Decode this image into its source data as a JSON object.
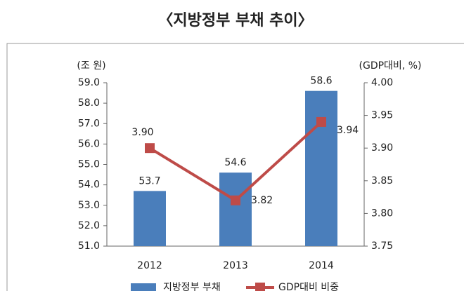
{
  "chart_data": {
    "type": "bar",
    "title": "〈지방정부 부채 추이〉",
    "y_label": "(조 원)",
    "y2_label": "(GDP대비, %)",
    "categories": [
      "2012",
      "2013",
      "2014"
    ],
    "series": [
      {
        "name": "지방정부 부채",
        "type": "bar",
        "color": "#4a7ebb",
        "values": [
          53.7,
          54.6,
          58.6
        ]
      },
      {
        "name": "GDP대비 비중",
        "type": "line",
        "axis": "y2",
        "color": "#be4b48",
        "values": [
          3.9,
          3.82,
          3.94
        ],
        "value_labels": [
          "3.90",
          "3.82",
          "3.94"
        ]
      }
    ],
    "ylim": [
      51,
      59
    ],
    "yticks": [
      {
        "value": 51,
        "label": "51.0"
      },
      {
        "value": 52,
        "label": "52.0"
      },
      {
        "value": 53,
        "label": "53.0"
      },
      {
        "value": 54,
        "label": "54.0"
      },
      {
        "value": 55,
        "label": "55.0"
      },
      {
        "value": 56,
        "label": "56.0"
      },
      {
        "value": 57,
        "label": "57.0"
      },
      {
        "value": 58,
        "label": "58.0"
      },
      {
        "value": 59,
        "label": "59.0"
      }
    ],
    "y2lim": [
      3.75,
      4.0
    ],
    "y2ticks": [
      3.75,
      {
        "value": 3.8,
        "label": "3.80"
      },
      3.85,
      {
        "value": 3.9,
        "label": "3.90"
      },
      3.95,
      {
        "value": 4.0,
        "label": "4.00"
      }
    ],
    "grid": false
  }
}
